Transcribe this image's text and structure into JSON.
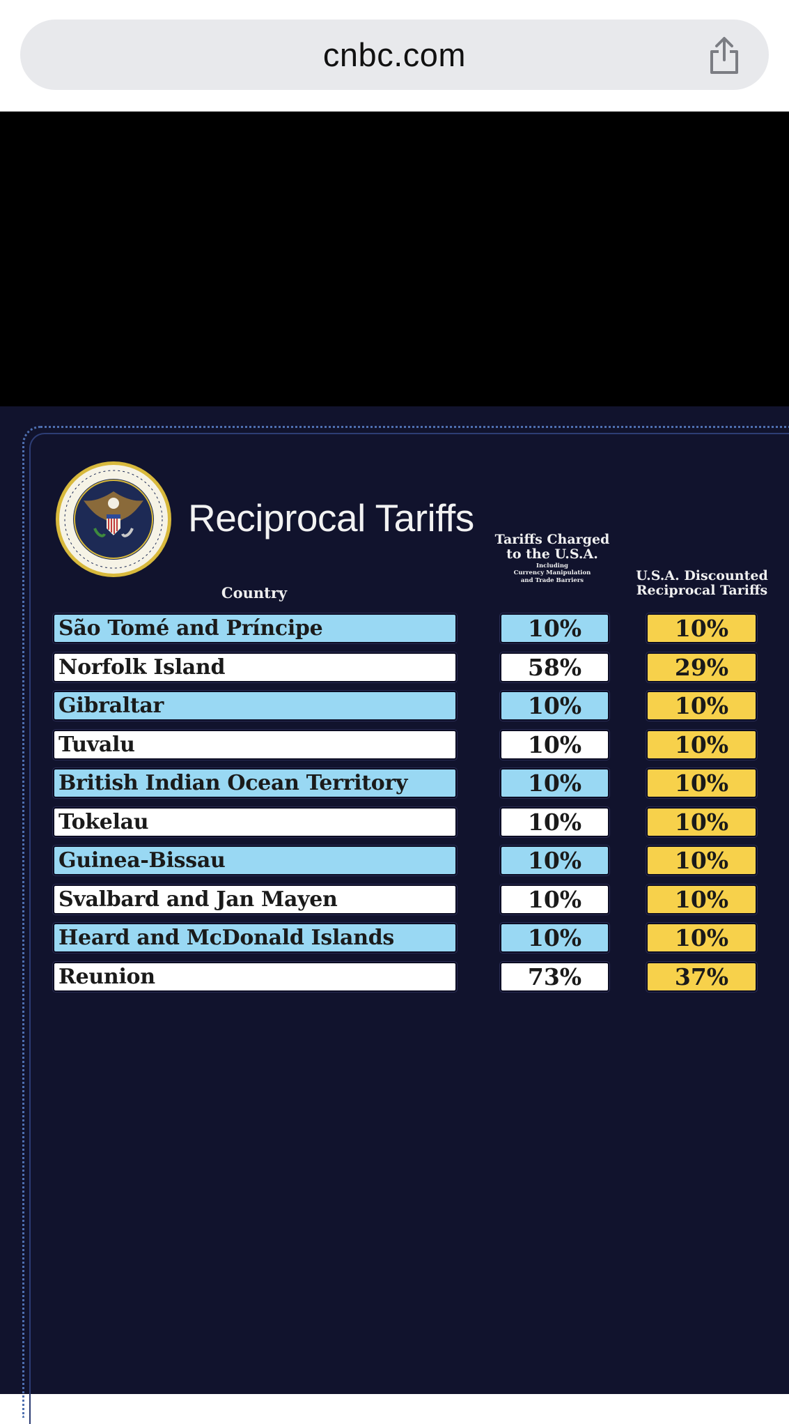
{
  "browser": {
    "url": "cnbc.com",
    "share_icon": "share-icon"
  },
  "poster": {
    "title": "Reciprocal Tariffs",
    "seal_icon": "presidential-seal-icon",
    "headers": {
      "country": "Country",
      "charged_line1": "Tariffs Charged",
      "charged_line2": "to the U.S.A.",
      "charged_small1": "Including",
      "charged_small2": "Currency Manipulation",
      "charged_small3": "and Trade Barriers",
      "discount_line1": "U.S.A. Discounted",
      "discount_line2": "Reciprocal Tariffs"
    },
    "rows": [
      {
        "country": "São Tomé and Príncipe",
        "charged": "10%",
        "discounted": "10%"
      },
      {
        "country": "Norfolk Island",
        "charged": "58%",
        "discounted": "29%"
      },
      {
        "country": "Gibraltar",
        "charged": "10%",
        "discounted": "10%"
      },
      {
        "country": "Tuvalu",
        "charged": "10%",
        "discounted": "10%"
      },
      {
        "country": "British Indian Ocean Territory",
        "charged": "10%",
        "discounted": "10%"
      },
      {
        "country": "Tokelau",
        "charged": "10%",
        "discounted": "10%"
      },
      {
        "country": "Guinea-Bissau",
        "charged": "10%",
        "discounted": "10%"
      },
      {
        "country": "Svalbard and Jan Mayen",
        "charged": "10%",
        "discounted": "10%"
      },
      {
        "country": "Heard and McDonald Islands",
        "charged": "10%",
        "discounted": "10%"
      },
      {
        "country": "Reunion",
        "charged": "73%",
        "discounted": "37%"
      }
    ],
    "colors": {
      "background": "#11132d",
      "row_blue": "#99d8f3",
      "row_white": "#ffffff",
      "discount_yellow": "#f7d14b"
    }
  }
}
